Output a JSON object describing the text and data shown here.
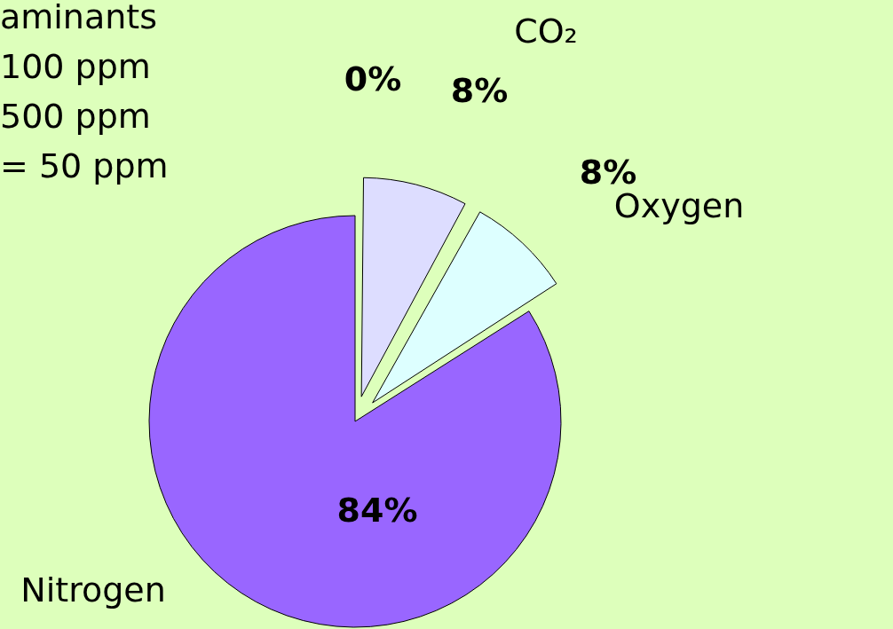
{
  "chart_data": {
    "type": "pie",
    "categories": [
      "aminants\n100 ppm\n500 ppm\n= 50 ppm",
      "CO₂",
      "Oxygen",
      "Nitrogen"
    ],
    "values": [
      0,
      8,
      8,
      84
    ],
    "colors": [
      "#6666cc",
      "#ddddff",
      "#ddffff",
      "#9966ff"
    ],
    "value_labels": [
      "0%",
      "8%",
      "8%",
      "84%"
    ],
    "legend": false
  }
}
